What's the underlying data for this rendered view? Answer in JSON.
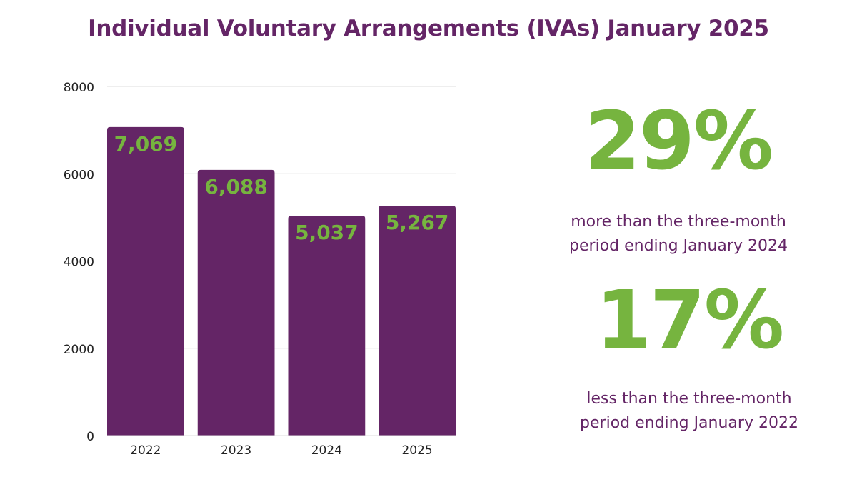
{
  "title": "Individual Voluntary Arrangements (IVAs) January 2025",
  "colors": {
    "purple": "#642566",
    "green": "#76B43F",
    "grid": "#DDDDDD",
    "axis_text": "#222222"
  },
  "chart_data": {
    "type": "bar",
    "title": "Individual Voluntary Arrangements (IVAs) January 2025",
    "categories": [
      "2022",
      "2023",
      "2024",
      "2025"
    ],
    "values": [
      7069,
      6088,
      5037,
      5267
    ],
    "data_labels": [
      "7,069",
      "6,088",
      "5,037",
      "5,267"
    ],
    "ylim": [
      0,
      8000
    ],
    "yticks": [
      0,
      2000,
      4000,
      6000,
      8000
    ],
    "xlabel": "",
    "ylabel": "",
    "grid": true,
    "legend": "none"
  },
  "stats": [
    {
      "value": "29%",
      "caption_line1": "more than the three-month",
      "caption_line2": "period ending January 2024"
    },
    {
      "value": "17%",
      "caption_line1": "less than the three-month",
      "caption_line2": "period ending January 2022"
    }
  ]
}
